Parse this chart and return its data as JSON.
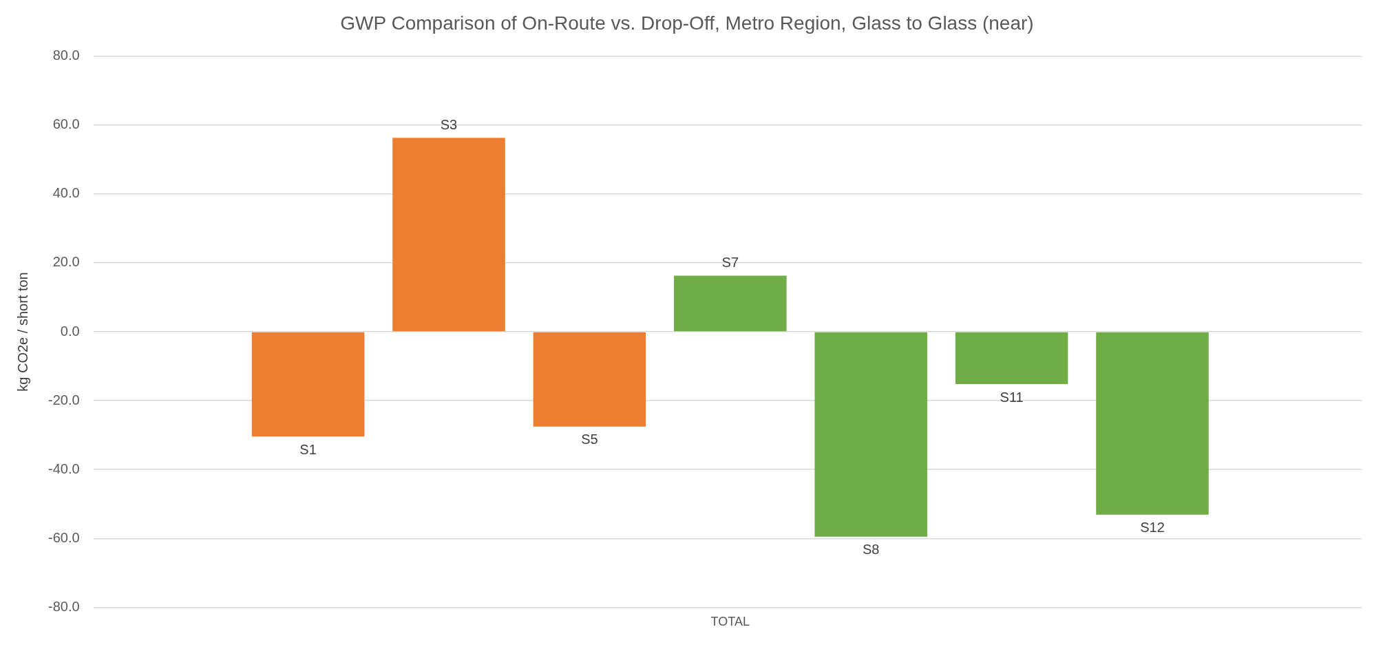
{
  "chart_data": {
    "type": "bar",
    "title": "GWP Comparison of On-Route vs. Drop-Off, Metro Region, Glass to Glass (near)",
    "ylabel": "kg CO2e / short ton",
    "categories": [
      "TOTAL"
    ],
    "series": [
      {
        "name": "S1",
        "color": "#ed7d31",
        "values": [
          -30.4
        ]
      },
      {
        "name": "S3",
        "color": "#ed7d31",
        "values": [
          56.3
        ]
      },
      {
        "name": "S5",
        "color": "#ed7d31",
        "values": [
          -27.5
        ]
      },
      {
        "name": "S7",
        "color": "#70ad47",
        "values": [
          16.3
        ]
      },
      {
        "name": "S8",
        "color": "#70ad47",
        "values": [
          -59.5
        ]
      },
      {
        "name": "S11",
        "color": "#70ad47",
        "values": [
          -15.2
        ]
      },
      {
        "name": "S12",
        "color": "#70ad47",
        "values": [
          -53.1
        ]
      }
    ],
    "ylim": [
      -80,
      80
    ],
    "yticks": [
      {
        "value": -80,
        "label": "-80.0"
      },
      {
        "value": -60,
        "label": "-60.0"
      },
      {
        "value": -40,
        "label": "-40.0"
      },
      {
        "value": -20,
        "label": "-20.0"
      },
      {
        "value": 0,
        "label": "0.0"
      },
      {
        "value": 20,
        "label": "20.0"
      },
      {
        "value": 40,
        "label": "40.0"
      },
      {
        "value": 60,
        "label": "60.0"
      },
      {
        "value": 80,
        "label": "80.0"
      }
    ],
    "grid": "y",
    "legend": false
  }
}
